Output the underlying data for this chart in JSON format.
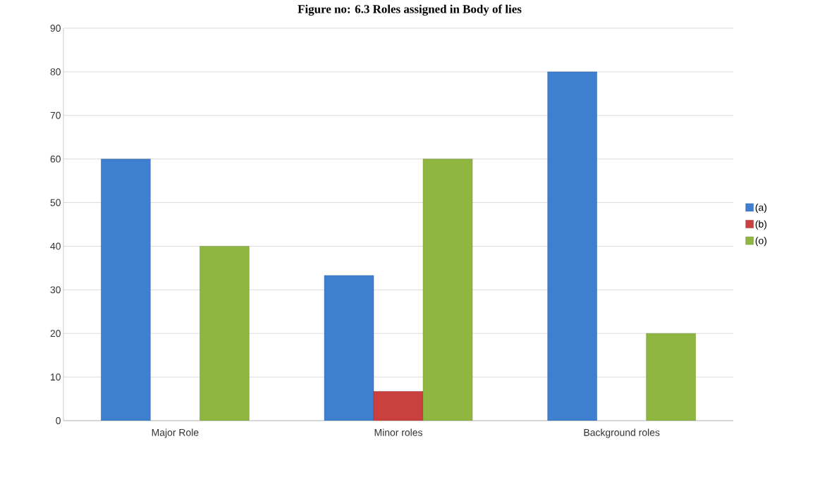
{
  "chart_data": {
    "type": "bar",
    "title": "Figure no: 6.3 Roles assigned in Body of lies",
    "categories": [
      "Major Role",
      "Minor roles",
      "Background roles"
    ],
    "series": [
      {
        "name": "(a)",
        "color": "#3f7fcf",
        "values": [
          60,
          33.3,
          80
        ]
      },
      {
        "name": "(b)",
        "color": "#c9403f",
        "values": [
          null,
          6.7,
          null
        ]
      },
      {
        "name": "(o)",
        "color": "#8fb640",
        "values": [
          40,
          60,
          20
        ]
      }
    ],
    "ylim": [
      0,
      90
    ],
    "yticks": [
      0,
      10,
      20,
      30,
      40,
      50,
      60,
      70,
      80,
      90
    ],
    "grid": "y",
    "legend": "right"
  }
}
